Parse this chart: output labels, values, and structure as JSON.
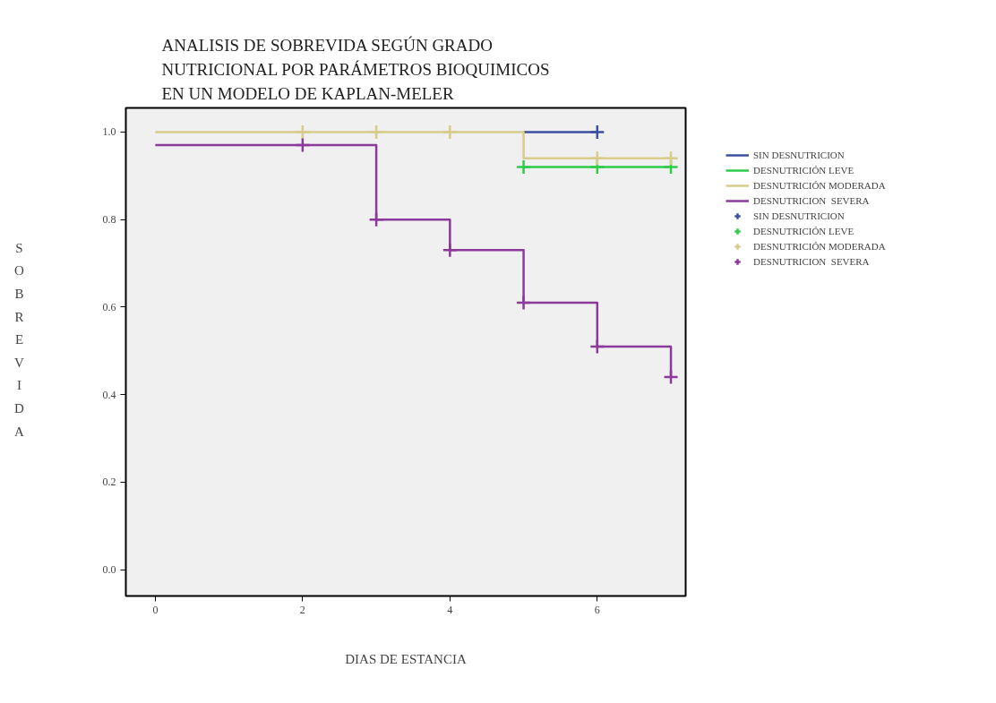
{
  "chart_data": {
    "type": "step",
    "title": "ANALISIS DE SOBREVIDA SEGÚN GRADO\nNUTRICIONAL POR PARÁMETROS BIOQUIMICOS\nEN UN MODELO DE KAPLAN-MELER",
    "xlabel": "DIAS DE ESTANCIA",
    "ylabel": "SOBREVIDA",
    "xlim": [
      -0.4,
      7.2
    ],
    "ylim": [
      -0.06,
      1.055
    ],
    "xticks": [
      0,
      2,
      4,
      6
    ],
    "yticks": [
      {
        "value": 0,
        "label": "0.0"
      },
      {
        "value": 0.2,
        "label": "0.2"
      },
      {
        "value": 0.4,
        "label": "0.4"
      },
      {
        "value": 0.6,
        "label": "0.6"
      },
      {
        "value": 0.8,
        "label": "0.8"
      },
      {
        "value": 1,
        "label": "1.0"
      }
    ],
    "grid": false,
    "legend": "right",
    "series": [
      {
        "name": "SIN DESNUTRICION",
        "color": "#3c4fa0",
        "x": [
          5,
          6
        ],
        "values": [
          1.0,
          1.0
        ]
      },
      {
        "name": "DESNUTRICIÓN LEVE",
        "color": "#2ecc4a",
        "x": [
          5,
          7
        ],
        "values": [
          0.92,
          0.92
        ]
      },
      {
        "name": "DESNUTRICIÓN MODERADA",
        "color": "#d8cc8a",
        "x": [
          0,
          5,
          7
        ],
        "values": [
          1.0,
          0.94,
          0.94
        ]
      },
      {
        "name": "DESNUTRICION  SEVERA",
        "color": "#8b3a9b",
        "x": [
          0,
          3,
          4,
          5,
          6,
          7
        ],
        "values": [
          0.97,
          0.8,
          0.73,
          0.61,
          0.51,
          0.44
        ]
      },
      {
        "name": "SIN DESNUTRICION",
        "type": "scatter",
        "marker": "cross",
        "color": "#3c4fa0",
        "x": [
          6
        ],
        "values": [
          1.0
        ]
      },
      {
        "name": "DESNUTRICIÓN LEVE",
        "type": "scatter",
        "marker": "cross",
        "color": "#2ecc4a",
        "x": [
          5,
          6,
          7
        ],
        "values": [
          0.92,
          0.92,
          0.92
        ]
      },
      {
        "name": "DESNUTRICIÓN MODERADA",
        "type": "scatter",
        "marker": "cross",
        "color": "#d8cc8a",
        "x": [
          2,
          3,
          4,
          6,
          7
        ],
        "values": [
          1.0,
          1.0,
          1.0,
          0.94,
          0.94
        ]
      },
      {
        "name": "DESNUTRICION  SEVERA",
        "type": "scatter",
        "marker": "cross",
        "color": "#8b3a9b",
        "x": [
          2,
          3,
          4,
          5,
          6,
          7
        ],
        "values": [
          0.97,
          0.8,
          0.73,
          0.61,
          0.51,
          0.44
        ]
      }
    ]
  }
}
